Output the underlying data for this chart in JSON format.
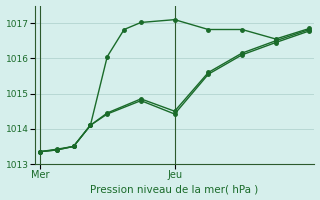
{
  "xlabel": "Pression niveau de la mer( hPa )",
  "bg_color": "#d6efec",
  "grid_color": "#b8d8d4",
  "line_color": "#1a6b2a",
  "spine_color": "#2d5a2d",
  "ylim": [
    1013.0,
    1017.5
  ],
  "yticks": [
    1013,
    1014,
    1015,
    1016,
    1017
  ],
  "day_labels": [
    "Mer",
    "Jeu"
  ],
  "day_positions": [
    0,
    8
  ],
  "xlim": [
    -0.3,
    16.3
  ],
  "line_jagged_x": [
    0,
    1,
    2,
    3,
    4,
    5,
    6,
    8,
    10,
    12,
    14,
    16
  ],
  "line_jagged_y": [
    1013.35,
    1013.42,
    1013.5,
    1014.1,
    1016.05,
    1016.82,
    1017.02,
    1017.1,
    1016.82,
    1016.82,
    1016.55,
    1016.85
  ],
  "line_low_x": [
    0,
    1,
    2,
    3,
    4,
    6,
    8,
    10,
    12,
    14,
    16
  ],
  "line_low_y": [
    1013.35,
    1013.4,
    1013.5,
    1014.1,
    1014.42,
    1014.8,
    1014.42,
    1015.55,
    1016.1,
    1016.45,
    1016.78
  ],
  "line_mid_x": [
    0,
    1,
    2,
    3,
    4,
    6,
    8,
    10,
    12,
    14,
    16
  ],
  "line_mid_y": [
    1013.35,
    1013.4,
    1013.5,
    1014.1,
    1014.45,
    1014.85,
    1014.5,
    1015.6,
    1016.15,
    1016.5,
    1016.82
  ],
  "vline_x": [
    0,
    8
  ],
  "marker": "o",
  "markersize": 2.5,
  "linewidth": 1.0
}
